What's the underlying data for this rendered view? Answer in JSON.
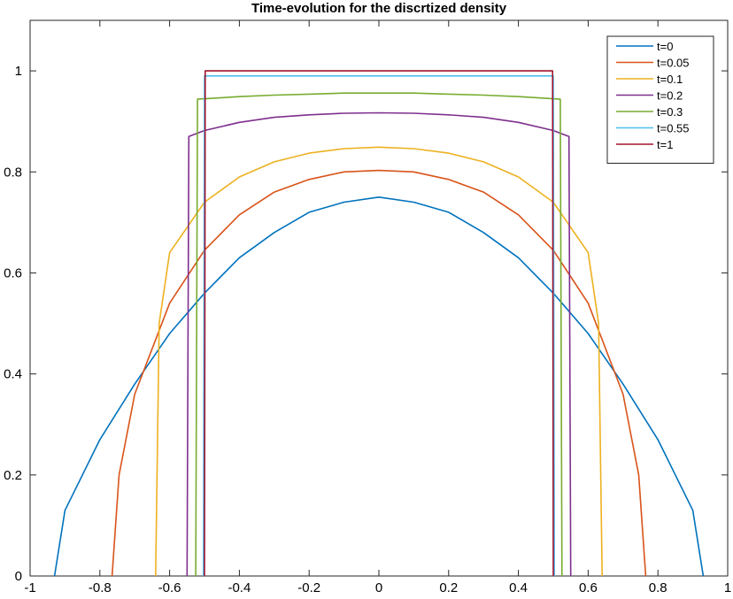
{
  "chart_data": {
    "type": "line",
    "title": "Time-evolution for the discrtized density",
    "xlabel": "",
    "ylabel": "",
    "xlim": [
      -1,
      1
    ],
    "ylim": [
      0,
      1.1
    ],
    "xticks": [
      -1,
      -0.8,
      -0.6,
      -0.4,
      -0.2,
      0,
      0.2,
      0.4,
      0.6,
      0.8,
      1
    ],
    "xtick_labels": [
      "-1",
      "-0.8",
      "-0.6",
      "-0.4",
      "-0.2",
      "0",
      "0.2",
      "0.4",
      "0.6",
      "0.8",
      "1"
    ],
    "yticks": [
      0,
      0.2,
      0.4,
      0.6,
      0.8,
      1
    ],
    "ytick_labels": [
      "0",
      "0.2",
      "0.4",
      "0.6",
      "0.8",
      "1"
    ],
    "grid": false,
    "legend_position": "top-right",
    "series": [
      {
        "name": "t=0",
        "color": "#0072BD",
        "x": [
          -0.93,
          -0.9,
          -0.8,
          -0.7,
          -0.6,
          -0.5,
          -0.4,
          -0.3,
          -0.2,
          -0.1,
          0,
          0.1,
          0.2,
          0.3,
          0.4,
          0.5,
          0.6,
          0.7,
          0.8,
          0.9,
          0.93
        ],
        "y": [
          0,
          0.13,
          0.27,
          0.38,
          0.48,
          0.56,
          0.63,
          0.68,
          0.72,
          0.74,
          0.75,
          0.74,
          0.72,
          0.68,
          0.63,
          0.56,
          0.48,
          0.38,
          0.27,
          0.13,
          0
        ]
      },
      {
        "name": "t=0.05",
        "color": "#D95319",
        "x": [
          -0.765,
          -0.745,
          -0.7,
          -0.6,
          -0.5,
          -0.4,
          -0.3,
          -0.2,
          -0.1,
          0,
          0.1,
          0.2,
          0.3,
          0.4,
          0.5,
          0.6,
          0.7,
          0.745,
          0.765
        ],
        "y": [
          0,
          0.2,
          0.36,
          0.54,
          0.645,
          0.715,
          0.76,
          0.785,
          0.8,
          0.803,
          0.8,
          0.785,
          0.76,
          0.715,
          0.645,
          0.54,
          0.36,
          0.2,
          0
        ],
        "scale": 1
      },
      {
        "name": "t=0.1",
        "color": "#EDB120",
        "x": [
          -0.64,
          -0.63,
          -0.6,
          -0.5,
          -0.4,
          -0.3,
          -0.2,
          -0.1,
          0,
          0.1,
          0.2,
          0.3,
          0.4,
          0.5,
          0.6,
          0.63,
          0.64
        ],
        "y": [
          0,
          0.5,
          0.64,
          0.74,
          0.79,
          0.82,
          0.837,
          0.846,
          0.849,
          0.846,
          0.837,
          0.82,
          0.79,
          0.74,
          0.64,
          0.5,
          0
        ]
      },
      {
        "name": "t=0.2",
        "color": "#7E2F8E",
        "x": [
          -0.55,
          -0.545,
          -0.5,
          -0.4,
          -0.3,
          -0.2,
          -0.1,
          0,
          0.1,
          0.2,
          0.3,
          0.4,
          0.5,
          0.545,
          0.55
        ],
        "y": [
          0,
          0.87,
          0.882,
          0.898,
          0.908,
          0.913,
          0.916,
          0.917,
          0.916,
          0.913,
          0.908,
          0.898,
          0.882,
          0.87,
          0
        ]
      },
      {
        "name": "t=0.3",
        "color": "#77AC30",
        "x": [
          -0.525,
          -0.52,
          -0.4,
          -0.3,
          -0.2,
          -0.1,
          0,
          0.1,
          0.2,
          0.3,
          0.4,
          0.52,
          0.525
        ],
        "y": [
          0,
          0.944,
          0.949,
          0.952,
          0.954,
          0.956,
          0.956,
          0.956,
          0.954,
          0.952,
          0.949,
          0.944,
          0
        ],
        "clip": 1
      },
      {
        "name": "t=0.55",
        "color": "#4DBEEE",
        "x": [
          -0.503,
          -0.5,
          -0.4,
          -0.2,
          0,
          0.2,
          0.4,
          0.5,
          0.503
        ],
        "y": [
          0,
          0.99,
          0.99,
          0.99,
          0.99,
          0.99,
          0.99,
          0.99,
          0
        ]
      },
      {
        "name": "t=1",
        "color": "#A2142F",
        "x": [
          -0.5,
          -0.498,
          0,
          0.498,
          0.5
        ],
        "y": [
          0,
          1.0,
          1.0,
          1.0,
          0
        ]
      }
    ]
  }
}
